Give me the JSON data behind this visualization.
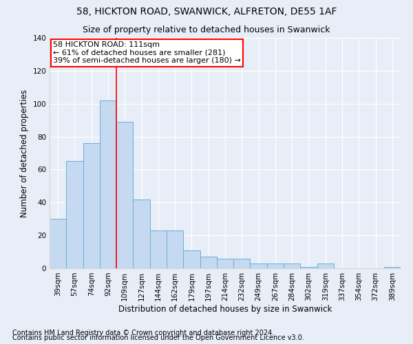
{
  "title": "58, HICKTON ROAD, SWANWICK, ALFRETON, DE55 1AF",
  "subtitle": "Size of property relative to detached houses in Swanwick",
  "xlabel": "Distribution of detached houses by size in Swanwick",
  "ylabel": "Number of detached properties",
  "bar_labels": [
    "39sqm",
    "57sqm",
    "74sqm",
    "92sqm",
    "109sqm",
    "127sqm",
    "144sqm",
    "162sqm",
    "179sqm",
    "197sqm",
    "214sqm",
    "232sqm",
    "249sqm",
    "267sqm",
    "284sqm",
    "302sqm",
    "319sqm",
    "337sqm",
    "354sqm",
    "372sqm",
    "389sqm"
  ],
  "bar_values": [
    30,
    65,
    76,
    102,
    89,
    42,
    23,
    23,
    11,
    7,
    6,
    6,
    3,
    3,
    3,
    1,
    3,
    0,
    0,
    0,
    1
  ],
  "bar_color": "#c5d9f0",
  "bar_edge_color": "#6aaed6",
  "vline_x": 4.5,
  "vline_color": "red",
  "annotation_title": "58 HICKTON ROAD: 111sqm",
  "annotation_line1": "← 61% of detached houses are smaller (281)",
  "annotation_line2": "39% of semi-detached houses are larger (180) →",
  "annotation_box_color": "white",
  "annotation_box_edge": "red",
  "ylim": [
    0,
    140
  ],
  "yticks": [
    0,
    20,
    40,
    60,
    80,
    100,
    120,
    140
  ],
  "footer1": "Contains HM Land Registry data © Crown copyright and database right 2024.",
  "footer2": "Contains public sector information licensed under the Open Government Licence v3.0.",
  "bg_color": "#e8eef8",
  "plot_bg_color": "#e8eef8",
  "title_fontsize": 10,
  "subtitle_fontsize": 9,
  "axis_label_fontsize": 8.5,
  "tick_fontsize": 7.5,
  "footer_fontsize": 7,
  "annotation_fontsize": 8
}
